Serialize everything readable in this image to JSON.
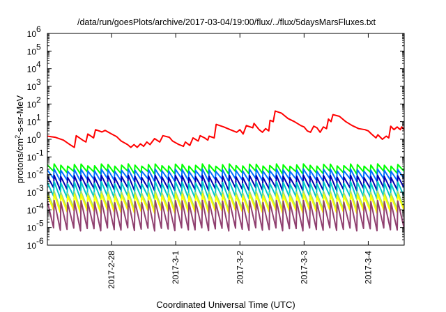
{
  "chart_data": {
    "type": "line",
    "title": "/data/run/goesPlots/archive/2017-03-04/19:00/flux/../flux/5daysMarsFluxes.txt",
    "xlabel": "Coordinated Universal Time (UTC)",
    "ylabel_main": "protons/cm",
    "ylabel_sup": "2",
    "ylabel_rest": "-s-sr-MeV",
    "y_scale": "log",
    "ylim_exponents": [
      -6,
      6
    ],
    "xlim_days": [
      0,
      5.56
    ],
    "x_ticks": [
      {
        "label": "2017-2-28",
        "day": 1.0
      },
      {
        "label": "2017-3-1",
        "day": 2.0
      },
      {
        "label": "2017-3-2",
        "day": 3.0
      },
      {
        "label": "2017-3-3",
        "day": 4.0
      },
      {
        "label": "2017-3-4",
        "day": 5.0
      }
    ],
    "y_ticks": [
      {
        "base": "10",
        "exp": "-6"
      },
      {
        "base": "10",
        "exp": "-5"
      },
      {
        "base": "10",
        "exp": "-4"
      },
      {
        "base": "10",
        "exp": "-3"
      },
      {
        "base": "10",
        "exp": "-2"
      },
      {
        "base": "10",
        "exp": "-1"
      },
      {
        "base": "10",
        "exp": "0"
      },
      {
        "base": "10",
        "exp": "1"
      },
      {
        "base": "10",
        "exp": "2"
      },
      {
        "base": "10",
        "exp": "3"
      },
      {
        "base": "10",
        "exp": "4"
      },
      {
        "base": "10",
        "exp": "5"
      },
      {
        "base": "10",
        "exp": "6"
      }
    ],
    "grid": false,
    "legend": "none",
    "series": [
      {
        "color": "#ff0000",
        "points": [
          [
            0,
            1.5
          ],
          [
            0.12,
            1.3
          ],
          [
            0.25,
            0.9
          ],
          [
            0.35,
            0.5
          ],
          [
            0.42,
            0.35
          ],
          [
            0.45,
            1.6
          ],
          [
            0.55,
            0.9
          ],
          [
            0.6,
            0.7
          ],
          [
            0.63,
            2.0
          ],
          [
            0.72,
            1.2
          ],
          [
            0.75,
            3.5
          ],
          [
            0.85,
            2.6
          ],
          [
            0.9,
            3.2
          ],
          [
            1.0,
            2.0
          ],
          [
            1.08,
            1.4
          ],
          [
            1.15,
            0.8
          ],
          [
            1.25,
            0.5
          ],
          [
            1.3,
            0.35
          ],
          [
            1.35,
            0.5
          ],
          [
            1.4,
            0.35
          ],
          [
            1.45,
            0.55
          ],
          [
            1.5,
            0.4
          ],
          [
            1.55,
            0.7
          ],
          [
            1.6,
            0.5
          ],
          [
            1.67,
            1.1
          ],
          [
            1.75,
            0.7
          ],
          [
            1.8,
            1.6
          ],
          [
            1.9,
            1.3
          ],
          [
            1.95,
            0.8
          ],
          [
            2.05,
            0.5
          ],
          [
            2.12,
            0.4
          ],
          [
            2.15,
            0.7
          ],
          [
            2.22,
            0.45
          ],
          [
            2.27,
            1.2
          ],
          [
            2.35,
            0.8
          ],
          [
            2.38,
            1.6
          ],
          [
            2.45,
            1.2
          ],
          [
            2.5,
            0.9
          ],
          [
            2.52,
            1.5
          ],
          [
            2.6,
            1.2
          ],
          [
            2.63,
            7.0
          ],
          [
            2.75,
            5.0
          ],
          [
            2.85,
            3.5
          ],
          [
            2.95,
            2.5
          ],
          [
            3.0,
            3.5
          ],
          [
            3.05,
            2.0
          ],
          [
            3.1,
            6.0
          ],
          [
            3.2,
            4.5
          ],
          [
            3.22,
            8.0
          ],
          [
            3.3,
            3.5
          ],
          [
            3.35,
            2.5
          ],
          [
            3.4,
            4.0
          ],
          [
            3.45,
            3.0
          ],
          [
            3.47,
            12.0
          ],
          [
            3.52,
            10.0
          ],
          [
            3.55,
            40.0
          ],
          [
            3.65,
            30.0
          ],
          [
            3.75,
            15.0
          ],
          [
            3.85,
            10.0
          ],
          [
            3.95,
            6.0
          ],
          [
            4.0,
            5.0
          ],
          [
            4.05,
            3.0
          ],
          [
            4.1,
            2.5
          ],
          [
            4.15,
            5.5
          ],
          [
            4.2,
            4.5
          ],
          [
            4.25,
            2.5
          ],
          [
            4.3,
            5.0
          ],
          [
            4.35,
            4.0
          ],
          [
            4.38,
            14.0
          ],
          [
            4.42,
            10.0
          ],
          [
            4.45,
            25.0
          ],
          [
            4.55,
            20.0
          ],
          [
            4.65,
            10.0
          ],
          [
            4.75,
            6.0
          ],
          [
            4.85,
            4.0
          ],
          [
            4.95,
            3.5
          ],
          [
            5.0,
            3.0
          ],
          [
            5.05,
            2.0
          ],
          [
            5.12,
            1.2
          ],
          [
            5.15,
            1.8
          ],
          [
            5.22,
            1.0
          ],
          [
            5.28,
            1.5
          ],
          [
            5.32,
            1.2
          ],
          [
            5.35,
            5.5
          ],
          [
            5.4,
            3.5
          ],
          [
            5.45,
            5.0
          ],
          [
            5.5,
            3.5
          ],
          [
            5.52,
            5.0
          ],
          [
            5.56,
            3.5
          ]
        ]
      },
      {
        "color": "#00ff00",
        "sawtooth": {
          "high": 0.035,
          "low": 0.013,
          "period": 0.105,
          "end": 0.013
        }
      },
      {
        "color": "#0070ff",
        "sawtooth": {
          "high": 0.018,
          "low": 0.005,
          "period": 0.105,
          "end": 0.006
        }
      },
      {
        "color": "#0000b0",
        "sawtooth": {
          "high": 0.008,
          "low": 0.0015,
          "period": 0.105,
          "end": 0.0025
        }
      },
      {
        "color": "#00c8c8",
        "sawtooth": {
          "high": 0.0035,
          "low": 0.0005,
          "period": 0.105,
          "end": 0.0007
        }
      },
      {
        "color": "#a0e070",
        "sawtooth": {
          "high": 0.001,
          "low": 0.00012,
          "period": 0.105,
          "end": 0.00025
        }
      },
      {
        "color": "#ffff00",
        "sawtooth": {
          "high": 0.0007,
          "low": 8e-05,
          "period": 0.105,
          "end": 0.00015
        }
      },
      {
        "color": "#904070",
        "sawtooth": {
          "high": 0.0003,
          "low": 8e-06,
          "period": 0.105,
          "end": 1.2e-05
        }
      }
    ]
  }
}
